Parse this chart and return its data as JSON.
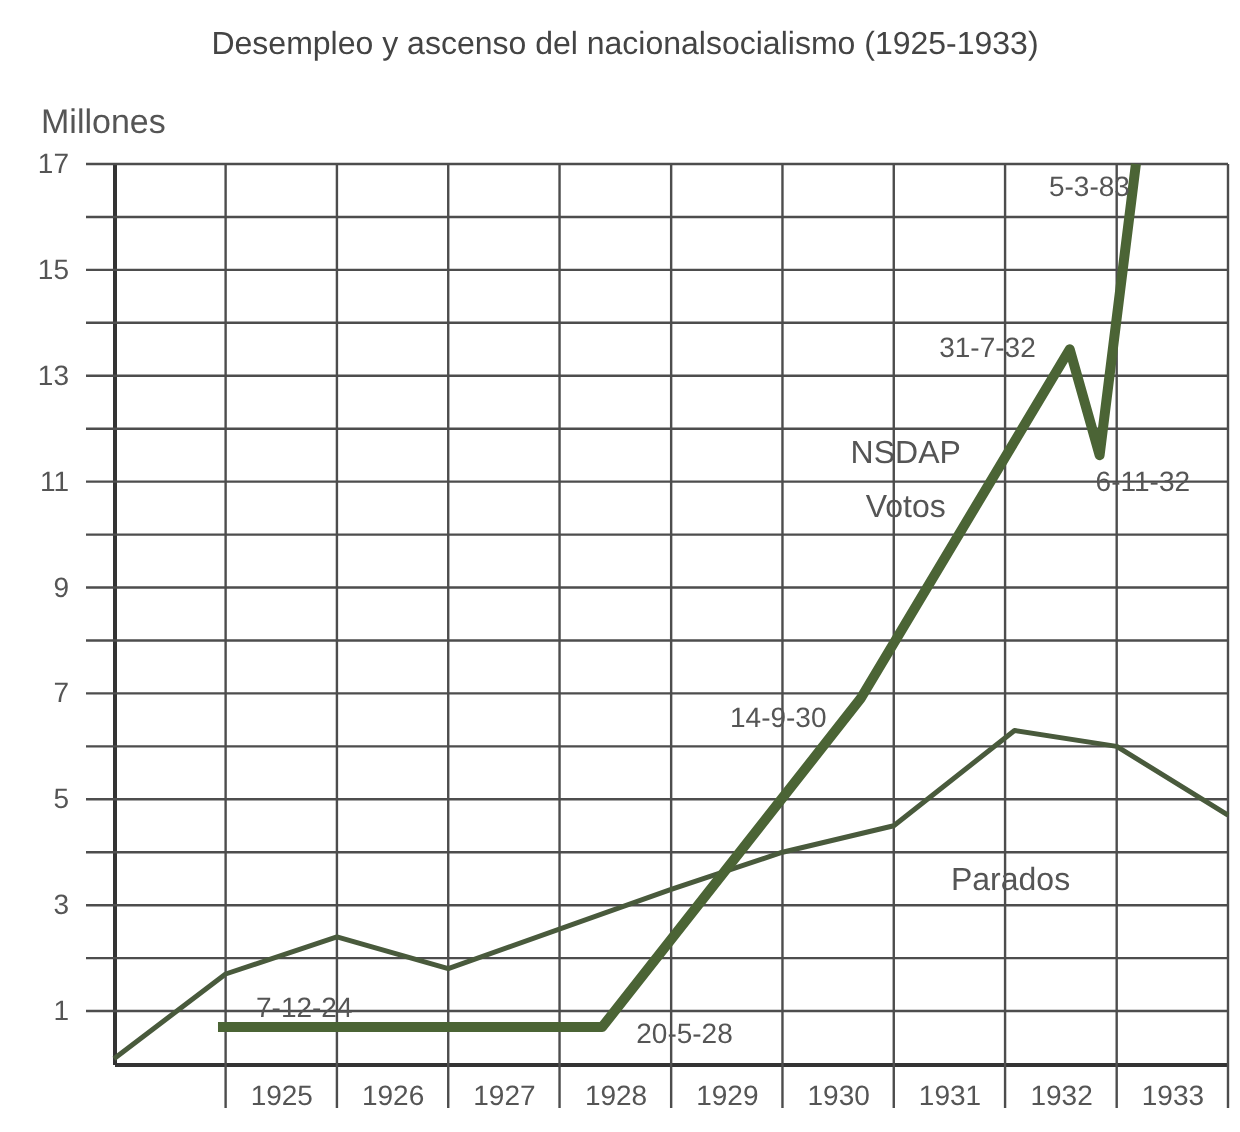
{
  "chart_data": {
    "type": "line",
    "title": "Desempleo y ascenso del nacionalsocialismo (1925-1933)",
    "ylabel": "Millones",
    "xlim": [
      "1924",
      "1934"
    ],
    "xticks": [
      {
        "value": "1925",
        "label": null
      },
      {
        "value": "1925-07",
        "label": "1925"
      },
      {
        "value": "1926",
        "label": null
      },
      {
        "value": "1926-07",
        "label": "1926"
      },
      {
        "value": "1927",
        "label": null
      },
      {
        "value": "1927-07",
        "label": "1927"
      },
      {
        "value": "1928",
        "label": null
      },
      {
        "value": "1928-07",
        "label": "1928"
      },
      {
        "value": "1929",
        "label": null
      },
      {
        "value": "1929-07",
        "label": "1929"
      },
      {
        "value": "1930",
        "label": null
      },
      {
        "value": "1930-07",
        "label": "1930"
      },
      {
        "value": "1931",
        "label": null
      },
      {
        "value": "1931-07",
        "label": "1931"
      },
      {
        "value": "1932",
        "label": null
      },
      {
        "value": "1932-07",
        "label": "1932"
      },
      {
        "value": "1933",
        "label": null
      },
      {
        "value": "1933-07",
        "label": "1933"
      },
      {
        "value": "1934",
        "label": null
      }
    ],
    "ylim": [
      0,
      17
    ],
    "yticks": [
      1,
      {
        "value": 2,
        "label": null
      },
      3,
      {
        "value": 4,
        "label": null
      },
      5,
      {
        "value": 6,
        "label": null
      },
      7,
      {
        "value": 8,
        "label": null
      },
      9,
      {
        "value": 10,
        "label": null
      },
      11,
      {
        "value": 12,
        "label": null
      },
      13,
      {
        "value": 14,
        "label": null
      },
      15,
      {
        "value": 16,
        "label": null
      },
      17
    ],
    "grid": true,
    "series": [
      {
        "name": "NSDAP\nVotos",
        "color": "#4b6435",
        "x": [
          "1924-12-07",
          "1928-05-20",
          "1930-09-14",
          "1932-07-31",
          "1932-11-06",
          "1933-03-05"
        ],
        "values": [
          0.7,
          0.7,
          6.9,
          13.5,
          11.5,
          17
        ]
      },
      {
        "name": "Parados",
        "color": "#495a3c",
        "x": [
          "1924",
          "1925",
          "1926",
          "1927",
          "1929",
          "1930",
          "1931",
          "1932-02",
          "1933",
          "1934"
        ],
        "values": [
          0.1,
          1.7,
          2.4,
          1.8,
          3.3,
          4.0,
          4.5,
          6.3,
          6.0,
          4.7
        ]
      }
    ],
    "annotations": [
      {
        "text": "7-12-24",
        "x": "1924-12-07",
        "y": 0.7
      },
      {
        "text": "20-5-28",
        "x": "1928-05-20",
        "y": 0.7
      },
      {
        "text": "14-9-30",
        "x": "1930-09-14",
        "y": 6.9
      },
      {
        "text": "31-7-32",
        "x": "1932-07-31",
        "y": 13.5
      },
      {
        "text": "6-11-32",
        "x": "1932-11-06",
        "y": 11.5
      },
      {
        "text": "5-3-83",
        "x": "1933-03-05",
        "y": 17
      }
    ]
  }
}
